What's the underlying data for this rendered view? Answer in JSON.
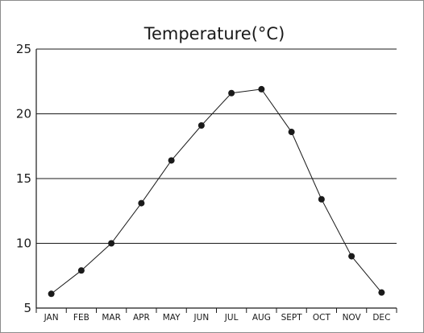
{
  "chart_data": {
    "type": "line",
    "title": "Temperature(°C)",
    "xlabel": "",
    "ylabel": "",
    "categories": [
      "JAN",
      "FEB",
      "MAR",
      "APR",
      "MAY",
      "JUN",
      "JUL",
      "AUG",
      "SEPT",
      "OCT",
      "NOV",
      "DEC"
    ],
    "series": [
      {
        "values": [
          6.1,
          7.9,
          10.0,
          13.1,
          16.4,
          19.1,
          21.6,
          21.9,
          18.6,
          13.4,
          9.0,
          6.2
        ]
      }
    ],
    "ylim": [
      5,
      25
    ],
    "yticks": [
      5,
      10,
      15,
      20,
      25
    ],
    "grid": "horizontal",
    "colors": {
      "line": "#1a1a1a",
      "marker": "#1a1a1a",
      "grid": "#1a1a1a",
      "axis": "#1a1a1a"
    }
  }
}
